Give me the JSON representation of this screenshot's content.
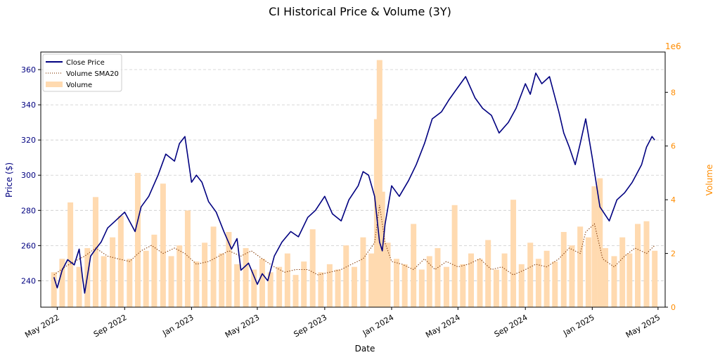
{
  "chart_data": {
    "type": "line",
    "title": "CI Historical Price & Volume (3Y)",
    "xlabel": "Date",
    "ylabel": "Price ($)",
    "y2label": "Volume",
    "y2_multiplier": "1e6",
    "xlim": [
      "2022-04-01",
      "2025-05-14"
    ],
    "ylim": [
      225,
      370
    ],
    "y2lim": [
      0,
      9.5
    ],
    "x_ticks": [
      {
        "date": "2022-05-01",
        "label": "May 2022"
      },
      {
        "date": "2022-09-01",
        "label": "Sep 2022"
      },
      {
        "date": "2023-01-01",
        "label": "Jan 2023"
      },
      {
        "date": "2023-05-01",
        "label": "May 2023"
      },
      {
        "date": "2023-09-01",
        "label": "Sep 2023"
      },
      {
        "date": "2024-01-01",
        "label": "Jan 2024"
      },
      {
        "date": "2024-05-01",
        "label": "May 2024"
      },
      {
        "date": "2024-09-01",
        "label": "Sep 2024"
      },
      {
        "date": "2025-01-01",
        "label": "Jan 2025"
      },
      {
        "date": "2025-05-01",
        "label": "May 2025"
      }
    ],
    "y_ticks": [
      240,
      260,
      280,
      300,
      320,
      340,
      360
    ],
    "y2_ticks": [
      0,
      2,
      4,
      6,
      8
    ],
    "grid": "horizontal dashed",
    "legend": {
      "position": "top-left",
      "entries": [
        "Close Price",
        "Volume SMA20",
        "Volume"
      ]
    },
    "colors": {
      "price": "#000080",
      "sma": "#8B4513",
      "volume": "#FFDAB0",
      "y2_axis": "#FF8C00"
    },
    "series": [
      {
        "name": "Close Price",
        "style": "line",
        "axis": "left",
        "x": [
          "2022-04-25",
          "2022-05-01",
          "2022-05-10",
          "2022-05-20",
          "2022-06-01",
          "2022-06-10",
          "2022-06-16",
          "2022-06-20",
          "2022-07-01",
          "2022-07-10",
          "2022-07-20",
          "2022-08-01",
          "2022-08-15",
          "2022-09-01",
          "2022-09-20",
          "2022-10-01",
          "2022-10-15",
          "2022-11-01",
          "2022-11-15",
          "2022-12-01",
          "2022-12-10",
          "2022-12-20",
          "2023-01-01",
          "2023-01-10",
          "2023-01-20",
          "2023-02-01",
          "2023-02-15",
          "2023-03-01",
          "2023-03-15",
          "2023-03-25",
          "2023-04-01",
          "2023-04-15",
          "2023-05-01",
          "2023-05-10",
          "2023-05-20",
          "2023-06-01",
          "2023-06-15",
          "2023-07-01",
          "2023-07-15",
          "2023-08-01",
          "2023-08-15",
          "2023-09-01",
          "2023-09-15",
          "2023-10-01",
          "2023-10-15",
          "2023-11-01",
          "2023-11-10",
          "2023-11-20",
          "2023-12-01",
          "2023-12-10",
          "2023-12-15",
          "2023-12-20",
          "2024-01-01",
          "2024-01-15",
          "2024-02-01",
          "2024-02-15",
          "2024-03-01",
          "2024-03-15",
          "2024-04-01",
          "2024-04-15",
          "2024-05-01",
          "2024-05-15",
          "2024-06-01",
          "2024-06-15",
          "2024-07-01",
          "2024-07-15",
          "2024-08-01",
          "2024-08-15",
          "2024-09-01",
          "2024-09-10",
          "2024-09-20",
          "2024-10-01",
          "2024-10-15",
          "2024-11-01",
          "2024-11-10",
          "2024-11-20",
          "2024-12-01",
          "2024-12-10",
          "2024-12-20",
          "2025-01-01",
          "2025-01-15",
          "2025-02-01",
          "2025-02-15",
          "2025-03-01",
          "2025-03-15",
          "2025-04-01",
          "2025-04-10",
          "2025-04-20",
          "2025-04-25"
        ],
        "y": [
          242,
          236,
          246,
          252,
          249,
          258,
          242,
          233,
          254,
          258,
          262,
          270,
          274,
          279,
          268,
          282,
          288,
          300,
          312,
          308,
          318,
          322,
          296,
          300,
          296,
          285,
          279,
          268,
          258,
          264,
          246,
          250,
          238,
          244,
          240,
          254,
          262,
          268,
          265,
          276,
          280,
          288,
          278,
          274,
          286,
          294,
          302,
          300,
          288,
          262,
          257,
          272,
          294,
          288,
          297,
          306,
          318,
          332,
          336,
          343,
          350,
          356,
          344,
          338,
          334,
          324,
          330,
          338,
          352,
          346,
          358,
          352,
          356,
          336,
          324,
          316,
          306,
          318,
          332,
          310,
          282,
          274,
          286,
          290,
          296,
          306,
          316,
          322,
          320
        ],
        "y_units": "dollars"
      },
      {
        "name": "Volume SMA20",
        "style": "dotted line",
        "axis": "right",
        "x": [
          "2022-04-25",
          "2022-05-15",
          "2022-06-01",
          "2022-06-20",
          "2022-07-10",
          "2022-08-01",
          "2022-08-20",
          "2022-09-10",
          "2022-10-01",
          "2022-10-20",
          "2022-11-10",
          "2022-12-01",
          "2022-12-20",
          "2023-01-10",
          "2023-02-01",
          "2023-02-20",
          "2023-03-10",
          "2023-04-01",
          "2023-04-20",
          "2023-05-10",
          "2023-06-01",
          "2023-06-20",
          "2023-07-10",
          "2023-08-01",
          "2023-08-20",
          "2023-09-10",
          "2023-10-01",
          "2023-10-20",
          "2023-11-10",
          "2023-12-01",
          "2023-12-10",
          "2023-12-20",
          "2024-01-01",
          "2024-01-20",
          "2024-02-10",
          "2024-03-01",
          "2024-03-20",
          "2024-04-10",
          "2024-05-01",
          "2024-05-20",
          "2024-06-10",
          "2024-07-01",
          "2024-07-20",
          "2024-08-10",
          "2024-09-01",
          "2024-09-20",
          "2024-10-10",
          "2024-11-01",
          "2024-11-20",
          "2024-12-10",
          "2024-12-20",
          "2025-01-05",
          "2025-01-20",
          "2025-02-10",
          "2025-03-01",
          "2025-03-20",
          "2025-04-10",
          "2025-04-25"
        ],
        "y": [
          1.2,
          1.5,
          1.7,
          1.9,
          2.2,
          1.9,
          1.8,
          1.7,
          2.1,
          2.3,
          2.0,
          2.2,
          2.0,
          1.6,
          1.7,
          1.9,
          2.1,
          1.9,
          2.1,
          1.8,
          1.5,
          1.3,
          1.4,
          1.4,
          1.2,
          1.3,
          1.4,
          1.6,
          1.8,
          2.4,
          3.8,
          2.4,
          1.7,
          1.6,
          1.4,
          1.8,
          1.4,
          1.7,
          1.5,
          1.6,
          1.8,
          1.4,
          1.5,
          1.2,
          1.4,
          1.6,
          1.5,
          1.8,
          2.2,
          2.0,
          2.8,
          3.1,
          1.8,
          1.5,
          1.9,
          2.2,
          2.0,
          2.3
        ],
        "y_units": "millions"
      },
      {
        "name": "Volume",
        "style": "bar",
        "axis": "right",
        "x": [
          "2022-04-25",
          "2022-05-10",
          "2022-05-25",
          "2022-06-10",
          "2022-06-25",
          "2022-07-10",
          "2022-07-25",
          "2022-08-10",
          "2022-08-25",
          "2022-09-10",
          "2022-09-25",
          "2022-10-10",
          "2022-10-25",
          "2022-11-10",
          "2022-11-25",
          "2022-12-10",
          "2022-12-25",
          "2023-01-10",
          "2023-01-25",
          "2023-02-10",
          "2023-02-25",
          "2023-03-10",
          "2023-03-25",
          "2023-04-10",
          "2023-04-25",
          "2023-05-10",
          "2023-05-25",
          "2023-06-10",
          "2023-06-25",
          "2023-07-10",
          "2023-07-25",
          "2023-08-10",
          "2023-08-25",
          "2023-09-10",
          "2023-09-25",
          "2023-10-10",
          "2023-10-25",
          "2023-11-10",
          "2023-11-25",
          "2023-12-05",
          "2023-12-10",
          "2023-12-15",
          "2023-12-25",
          "2024-01-10",
          "2024-01-25",
          "2024-02-10",
          "2024-02-25",
          "2024-03-10",
          "2024-03-25",
          "2024-04-10",
          "2024-04-25",
          "2024-05-10",
          "2024-05-25",
          "2024-06-10",
          "2024-06-25",
          "2024-07-10",
          "2024-07-25",
          "2024-08-10",
          "2024-08-25",
          "2024-09-10",
          "2024-09-25",
          "2024-10-10",
          "2024-10-25",
          "2024-11-10",
          "2024-11-25",
          "2024-12-10",
          "2024-12-25",
          "2025-01-05",
          "2025-01-15",
          "2025-01-25",
          "2025-02-10",
          "2025-02-25",
          "2025-03-10",
          "2025-03-25",
          "2025-04-10",
          "2025-04-25"
        ],
        "y": [
          1.3,
          1.8,
          3.9,
          1.5,
          2.2,
          4.1,
          1.9,
          2.6,
          3.4,
          1.8,
          5.0,
          2.1,
          2.7,
          4.6,
          1.9,
          2.3,
          3.6,
          1.7,
          2.4,
          3.0,
          2.0,
          2.8,
          1.6,
          2.2,
          1.4,
          1.8,
          1.3,
          1.5,
          2.0,
          1.2,
          1.7,
          2.9,
          1.3,
          1.6,
          1.4,
          2.3,
          1.5,
          2.6,
          2.0,
          7.0,
          9.2,
          4.3,
          2.4,
          1.8,
          1.6,
          3.1,
          1.4,
          1.9,
          2.2,
          1.5,
          3.8,
          1.6,
          2.0,
          1.8,
          2.5,
          1.4,
          2.0,
          4.0,
          1.6,
          2.4,
          1.8,
          2.1,
          1.7,
          2.8,
          2.3,
          3.0,
          2.6,
          4.5,
          4.8,
          2.2,
          1.9,
          2.6,
          2.0,
          3.1,
          3.2,
          2.1
        ],
        "y_units": "millions"
      }
    ]
  }
}
